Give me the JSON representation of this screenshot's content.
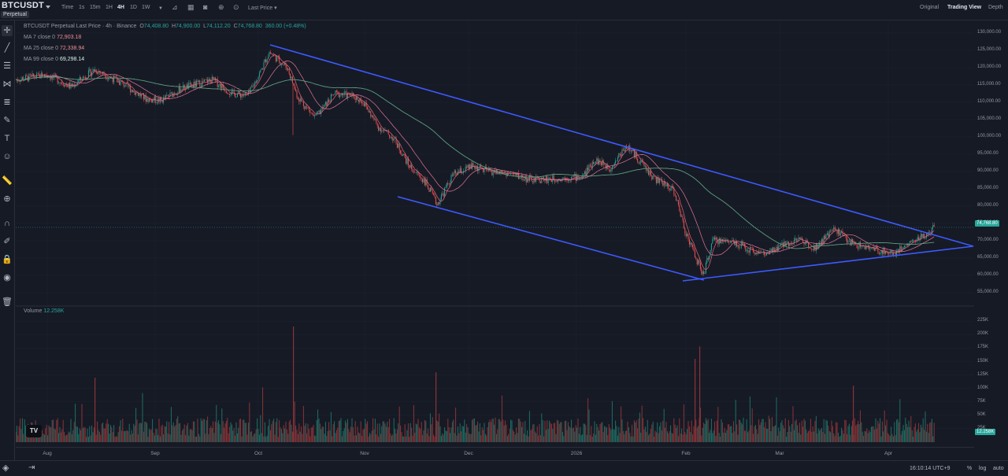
{
  "header": {
    "symbol": "BTCUSDT",
    "badge": "Perpetual",
    "timeframes": [
      "Time",
      "1s",
      "15m",
      "1H",
      "4H",
      "1D",
      "1W"
    ],
    "active_timeframe": "4H",
    "price_type": "Last Price",
    "views": [
      "Original",
      "Trading View",
      "Depth"
    ],
    "active_view": "Trading View"
  },
  "legend": {
    "title": "BTCUSDT Perpetual Last Price · 4h · Binance",
    "ohlc": {
      "open_label": "O",
      "open": "74,408.80",
      "high_label": "H",
      "high": "74,900.00",
      "low_label": "L",
      "low": "74,112.20",
      "close_label": "C",
      "close": "74,768.80",
      "change": "360.00 (+0.48%)"
    },
    "ma": [
      {
        "label": "MA 7 close 0",
        "value": "72,903.18",
        "color": "#e8637a"
      },
      {
        "label": "MA 25 close 0",
        "value": "72,338.94",
        "color": "#e57596"
      },
      {
        "label": "MA 99 close 0",
        "value": "69,298.14",
        "color": "#d8f2e6"
      }
    ],
    "volume_label": "Volume",
    "volume_value": "12.258K"
  },
  "price_axis": {
    "ticks": [
      "130,000.00",
      "125,000.00",
      "120,000.00",
      "115,000.00",
      "110,000.00",
      "105,000.00",
      "100,000.00",
      "95,000.00",
      "90,000.00",
      "85,000.00",
      "80,000.00",
      "75,000.00",
      "70,000.00",
      "65,000.00",
      "60,000.00",
      "55,000.00"
    ],
    "current_price": "74,768.80",
    "volume_ticks": [
      "225K",
      "200K",
      "175K",
      "150K",
      "125K",
      "100K",
      "75K",
      "50K",
      "25K"
    ],
    "current_volume": "12.258K"
  },
  "time_axis": {
    "months": [
      "Aug",
      "Sep",
      "Oct",
      "Nov",
      "Dec",
      "2026",
      "Feb",
      "Mar",
      "Apr"
    ]
  },
  "footer": {
    "time": "16:10:14 UTC+9",
    "options": [
      "%",
      "log",
      "auto"
    ]
  },
  "colors": {
    "up": "#26a69a",
    "down": "#ef5350",
    "trendline": "#3d5afe",
    "background": "#161a25"
  },
  "icons": [
    "crosshair-icon",
    "trend-line-icon",
    "horizontal-lines-icon",
    "pattern-icon",
    "fib-icon",
    "brush-icon",
    "text-icon",
    "emoji-icon",
    "ruler-icon",
    "zoom-in-icon",
    "magnet-icon",
    "lock-drawing-icon",
    "lock-icon",
    "eye-icon",
    "trash-icon"
  ]
}
